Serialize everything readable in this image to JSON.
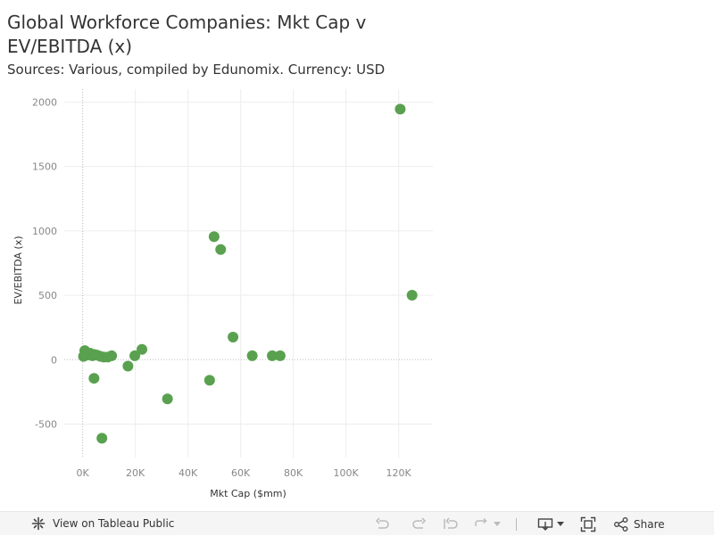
{
  "chart_data": {
    "type": "scatter",
    "title": "Global Workforce Companies:  Mkt Cap v EV/EBITDA (x)",
    "subtitle": "Sources: Various, compiled by Edunomix. Currency: USD",
    "xlabel": "Mkt Cap ($mm)",
    "ylabel": "EV/EBITDA (x)",
    "xlim": [
      -7000,
      133000
    ],
    "ylim": [
      -760,
      2100
    ],
    "xticks": [
      0,
      20000,
      40000,
      60000,
      80000,
      100000,
      120000
    ],
    "xtick_labels": [
      "0K",
      "20K",
      "40K",
      "60K",
      "80K",
      "100K",
      "120K"
    ],
    "yticks": [
      -500,
      0,
      500,
      1000,
      1500,
      2000
    ],
    "ytick_labels": [
      "-500",
      "0",
      "500",
      "1000",
      "1500",
      "2000"
    ],
    "grid": true,
    "color": "#59a14f",
    "points": [
      {
        "x": 800,
        "y": 70
      },
      {
        "x": 300,
        "y": 25
      },
      {
        "x": 1500,
        "y": 35
      },
      {
        "x": 2800,
        "y": 50
      },
      {
        "x": 3700,
        "y": 30
      },
      {
        "x": 4500,
        "y": 40
      },
      {
        "x": 5500,
        "y": 35
      },
      {
        "x": 6800,
        "y": 25
      },
      {
        "x": 8000,
        "y": 20
      },
      {
        "x": 9500,
        "y": 20
      },
      {
        "x": 11000,
        "y": 30
      },
      {
        "x": 4300,
        "y": -145
      },
      {
        "x": 7300,
        "y": -610
      },
      {
        "x": 17200,
        "y": -50
      },
      {
        "x": 19800,
        "y": 30
      },
      {
        "x": 22500,
        "y": 80
      },
      {
        "x": 32200,
        "y": -305
      },
      {
        "x": 48200,
        "y": -160
      },
      {
        "x": 49900,
        "y": 955
      },
      {
        "x": 52400,
        "y": 855
      },
      {
        "x": 57100,
        "y": 175
      },
      {
        "x": 64400,
        "y": 30
      },
      {
        "x": 72000,
        "y": 30
      },
      {
        "x": 75000,
        "y": 30
      },
      {
        "x": 120600,
        "y": 1945
      },
      {
        "x": 125100,
        "y": 500
      }
    ]
  },
  "toolbar": {
    "view_label": "View on Tableau Public",
    "share_label": "Share"
  }
}
